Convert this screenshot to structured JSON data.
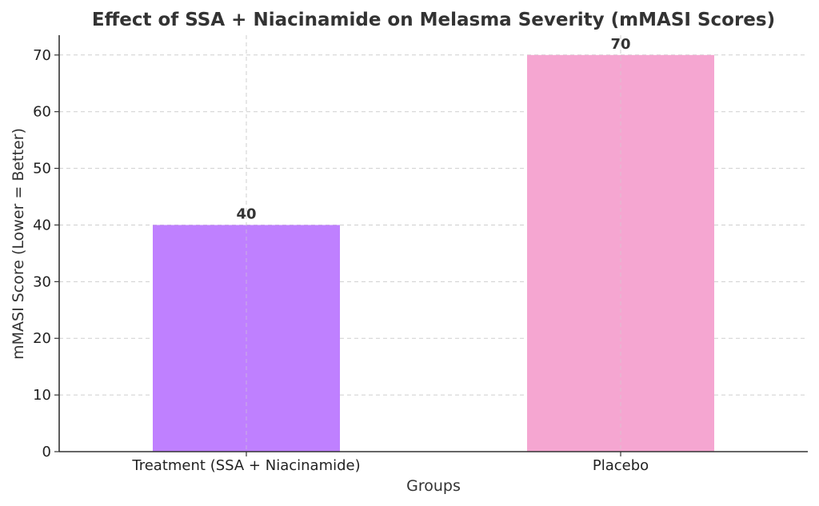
{
  "chart_data": {
    "type": "bar",
    "title": "Effect of SSA + Niacinamide on Melasma Severity (mMASI Scores)",
    "xlabel": "Groups",
    "ylabel": "mMASI Score (Lower = Better)",
    "categories": [
      "Treatment (SSA + Niacinamide)",
      "Placebo"
    ],
    "values": [
      40,
      70
    ],
    "data_labels": [
      "40",
      "70"
    ],
    "colors": [
      "#bf80ff",
      "#f5a6d1"
    ],
    "ylim": [
      0,
      73.5
    ],
    "yticks": [
      0,
      10,
      20,
      30,
      40,
      50,
      60,
      70
    ],
    "grid": true,
    "legend": "none"
  }
}
